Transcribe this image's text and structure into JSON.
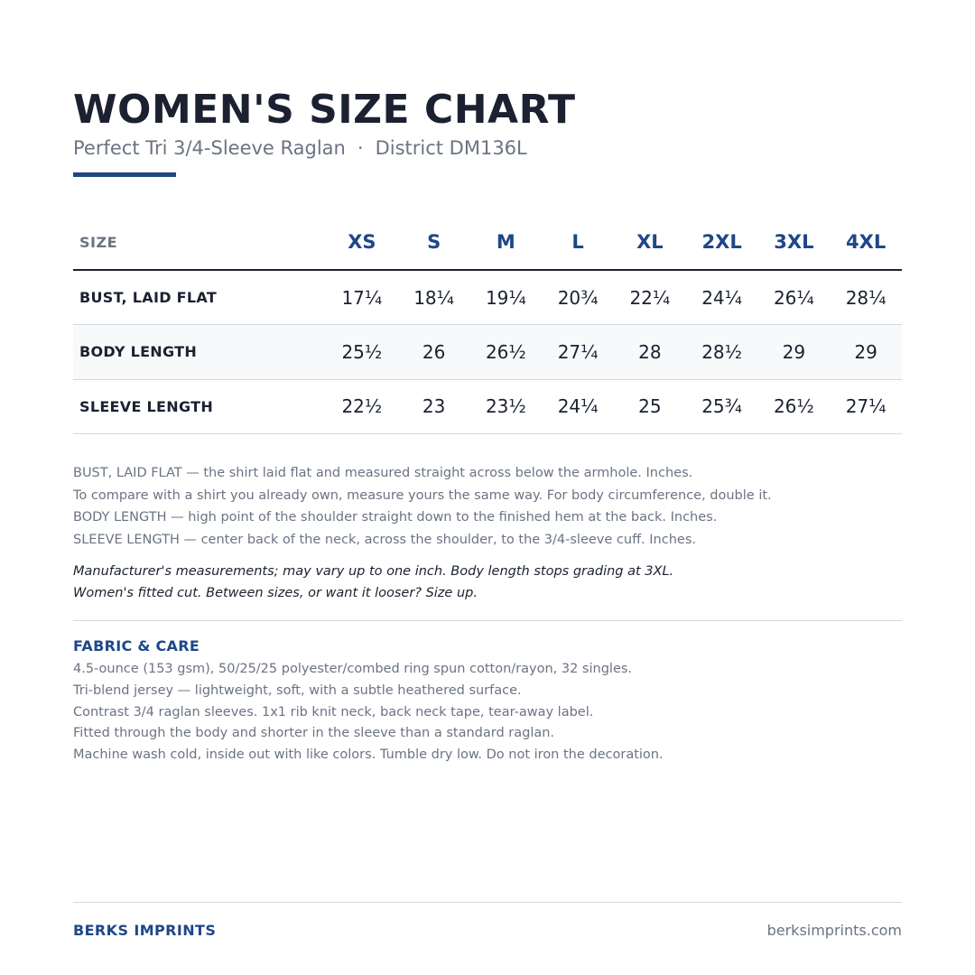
{
  "header": {
    "title": "WOMEN'S SIZE CHART",
    "product": "Perfect Tri 3/4-Sleeve Raglan",
    "separator": "·",
    "style_code": "District DM136L"
  },
  "table": {
    "label_header": "SIZE",
    "sizes": [
      "XS",
      "S",
      "M",
      "L",
      "XL",
      "2XL",
      "3XL",
      "4XL"
    ],
    "rows": [
      {
        "label": "BUST, LAID FLAT",
        "values": [
          "17¼",
          "18¼",
          "19¼",
          "20¾",
          "22¼",
          "24¼",
          "26¼",
          "28¼"
        ]
      },
      {
        "label": "BODY LENGTH",
        "values": [
          "25½",
          "26",
          "26½",
          "27¼",
          "28",
          "28½",
          "29",
          "29"
        ]
      },
      {
        "label": "SLEEVE LENGTH",
        "values": [
          "22½",
          "23",
          "23½",
          "24¼",
          "25",
          "25¾",
          "26½",
          "27¼"
        ]
      }
    ]
  },
  "notes": {
    "lines": [
      "BUST, LAID FLAT — the shirt laid flat and measured straight across below the armhole. Inches.",
      "To compare with a shirt you already own, measure yours the same way. For body circumference, double it.",
      "BODY LENGTH — high point of the shoulder straight down to the finished hem at the back. Inches.",
      "SLEEVE LENGTH — center back of the neck, across the shoulder, to the 3/4-sleeve cuff. Inches."
    ],
    "disclaimer": [
      "Manufacturer's measurements; may vary up to one inch. Body length stops grading at 3XL.",
      "Women's fitted cut. Between sizes, or want it looser? Size up."
    ]
  },
  "fabric": {
    "heading": "FABRIC & CARE",
    "lines": [
      "4.5-ounce (153 gsm), 50/25/25 polyester/combed ring spun cotton/rayon, 32 singles.",
      "Tri-blend jersey — lightweight, soft, with a subtle heathered surface.",
      "Contrast 3/4 raglan sleeves. 1x1 rib knit neck, back neck tape, tear-away label.",
      "Fitted through the body and shorter in the sleeve than a standard raglan.",
      "Machine wash cold, inside out with like colors. Tumble dry low. Do not iron the decoration."
    ]
  },
  "footer": {
    "brand": "BERKS IMPRINTS",
    "url": "berksimprints.com"
  },
  "colors": {
    "accent": "#1f4788",
    "text": "#1b2130",
    "muted": "#6b7383",
    "rule": "#d4d8de",
    "alt_row": "#f8f9fb"
  }
}
